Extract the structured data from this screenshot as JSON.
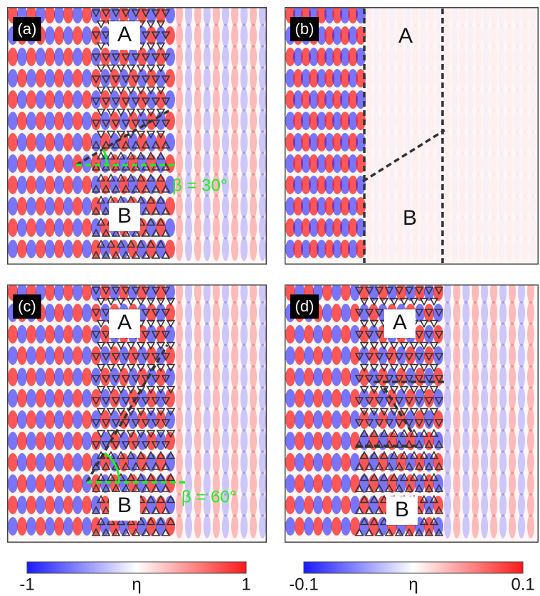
{
  "panels": [
    {
      "label": "(a)",
      "region_a": "A",
      "region_b": "B",
      "angle": "β = 30°"
    },
    {
      "label": "(b)",
      "region_a": "A",
      "region_b": "B"
    },
    {
      "label": "(c)",
      "region_a": "A",
      "region_b": "B",
      "angle": "β = 60°"
    },
    {
      "label": "(d)",
      "region_a": "A",
      "region_b": "B"
    }
  ],
  "colorbars": [
    {
      "min": "-1",
      "symbol": "η",
      "max": "1"
    },
    {
      "min": "-0.1",
      "symbol": "η",
      "max": "0.1"
    }
  ]
}
